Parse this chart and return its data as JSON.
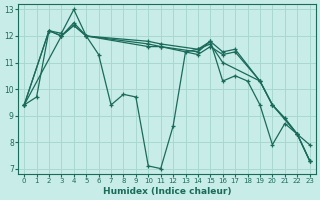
{
  "xlabel": "Humidex (Indice chaleur)",
  "bg_color": "#c8ece8",
  "grid_color": "#a8d8d0",
  "line_color": "#1a6b5a",
  "xlim": [
    -0.5,
    23.5
  ],
  "ylim": [
    6.8,
    13.2
  ],
  "xticks": [
    0,
    1,
    2,
    3,
    4,
    5,
    6,
    7,
    8,
    9,
    10,
    11,
    12,
    13,
    14,
    15,
    16,
    17,
    18,
    19,
    20,
    21,
    22,
    23
  ],
  "yticks": [
    7,
    8,
    9,
    10,
    11,
    12,
    13
  ],
  "series": [
    {
      "x": [
        0,
        1,
        2,
        3,
        4,
        5,
        6,
        7,
        8,
        9,
        10,
        11,
        12,
        13,
        14,
        15,
        16,
        17,
        18,
        19,
        20,
        21,
        22,
        23
      ],
      "y": [
        9.4,
        9.7,
        12.2,
        12.0,
        12.4,
        12.0,
        11.3,
        9.4,
        9.8,
        9.7,
        7.1,
        7.0,
        8.6,
        11.4,
        11.5,
        11.8,
        10.3,
        10.5,
        10.3,
        9.4,
        7.9,
        8.7,
        8.3,
        7.3
      ]
    },
    {
      "x": [
        0,
        2,
        3,
        4,
        5,
        10,
        11,
        14,
        15,
        16,
        19,
        20,
        22,
        23
      ],
      "y": [
        9.4,
        12.2,
        12.0,
        12.5,
        12.0,
        11.8,
        11.7,
        11.5,
        11.7,
        11.0,
        10.3,
        9.4,
        8.3,
        7.9
      ]
    },
    {
      "x": [
        0,
        2,
        3,
        4,
        5,
        10,
        11,
        14,
        15,
        16,
        17,
        19,
        20,
        21,
        22,
        23
      ],
      "y": [
        9.4,
        12.2,
        12.1,
        13.0,
        12.0,
        11.7,
        11.6,
        11.4,
        11.8,
        11.4,
        11.5,
        10.3,
        9.4,
        8.9,
        8.3,
        7.3
      ]
    },
    {
      "x": [
        0,
        3,
        4,
        5,
        10,
        11,
        14,
        15,
        16,
        17,
        19,
        20,
        21,
        22,
        23
      ],
      "y": [
        9.4,
        12.0,
        12.4,
        12.0,
        11.6,
        11.6,
        11.3,
        11.6,
        11.3,
        11.4,
        10.3,
        9.4,
        8.9,
        8.3,
        7.3
      ]
    }
  ]
}
